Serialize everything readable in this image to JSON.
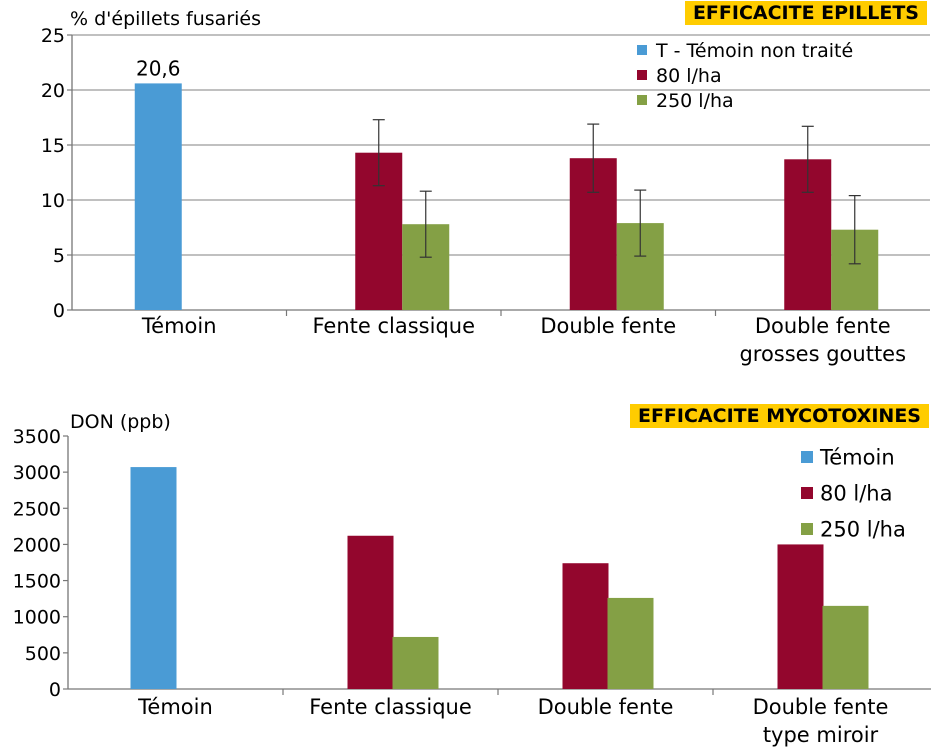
{
  "colors": {
    "temoin": "#4a9bd5",
    "80": "#93062d",
    "250": "#84a045",
    "axis": "#777777",
    "grid": "#9a9a9a",
    "badge": "#ffcc00"
  },
  "chart_data": [
    {
      "type": "bar",
      "title": "EFFICACITE  EPILLETS",
      "ylabel": "% d'épillets fusariés",
      "ylim": [
        0,
        25
      ],
      "yticks": [
        0,
        5,
        10,
        15,
        20,
        25
      ],
      "grid": true,
      "legend_position": "top-right",
      "categories": [
        {
          "lines": [
            "Témoin"
          ]
        },
        {
          "lines": [
            "Fente classique"
          ]
        },
        {
          "lines": [
            "Double fente"
          ]
        },
        {
          "lines": [
            "Double fente",
            "grosses gouttes"
          ]
        }
      ],
      "series": [
        {
          "name": "T - Témoin non traité",
          "color_key": "temoin",
          "values": [
            20.6,
            null,
            null,
            null
          ],
          "errors": [
            null,
            null,
            null,
            null
          ]
        },
        {
          "name": "80 l/ha",
          "color_key": "80",
          "values": [
            null,
            14.3,
            13.8,
            13.7
          ],
          "errors": [
            null,
            3.0,
            3.1,
            3.0
          ]
        },
        {
          "name": "250 l/ha",
          "color_key": "250",
          "values": [
            null,
            7.8,
            7.9,
            7.3
          ],
          "errors": [
            null,
            3.0,
            3.0,
            3.1
          ]
        }
      ],
      "data_labels": [
        {
          "series": 0,
          "category": 0,
          "text": "20,6"
        }
      ]
    },
    {
      "type": "bar",
      "title": "EFFICACITE  MYCOTOXINES",
      "ylabel": "DON (ppb)",
      "ylim": [
        0,
        3500
      ],
      "yticks": [
        0,
        500,
        1000,
        1500,
        2000,
        2500,
        3000,
        3500
      ],
      "grid": false,
      "legend_position": "top-right",
      "categories": [
        {
          "lines": [
            "Témoin"
          ]
        },
        {
          "lines": [
            "Fente classique"
          ]
        },
        {
          "lines": [
            "Double fente"
          ]
        },
        {
          "lines": [
            "Double fente",
            "type miroir"
          ]
        }
      ],
      "series": [
        {
          "name": "Témoin",
          "color_key": "temoin",
          "values": [
            3070,
            null,
            null,
            null
          ]
        },
        {
          "name": "80 l/ha",
          "color_key": "80",
          "values": [
            null,
            2120,
            1740,
            2000
          ]
        },
        {
          "name": "250 l/ha",
          "color_key": "250",
          "values": [
            null,
            720,
            1260,
            1150
          ]
        }
      ],
      "data_labels": []
    }
  ]
}
